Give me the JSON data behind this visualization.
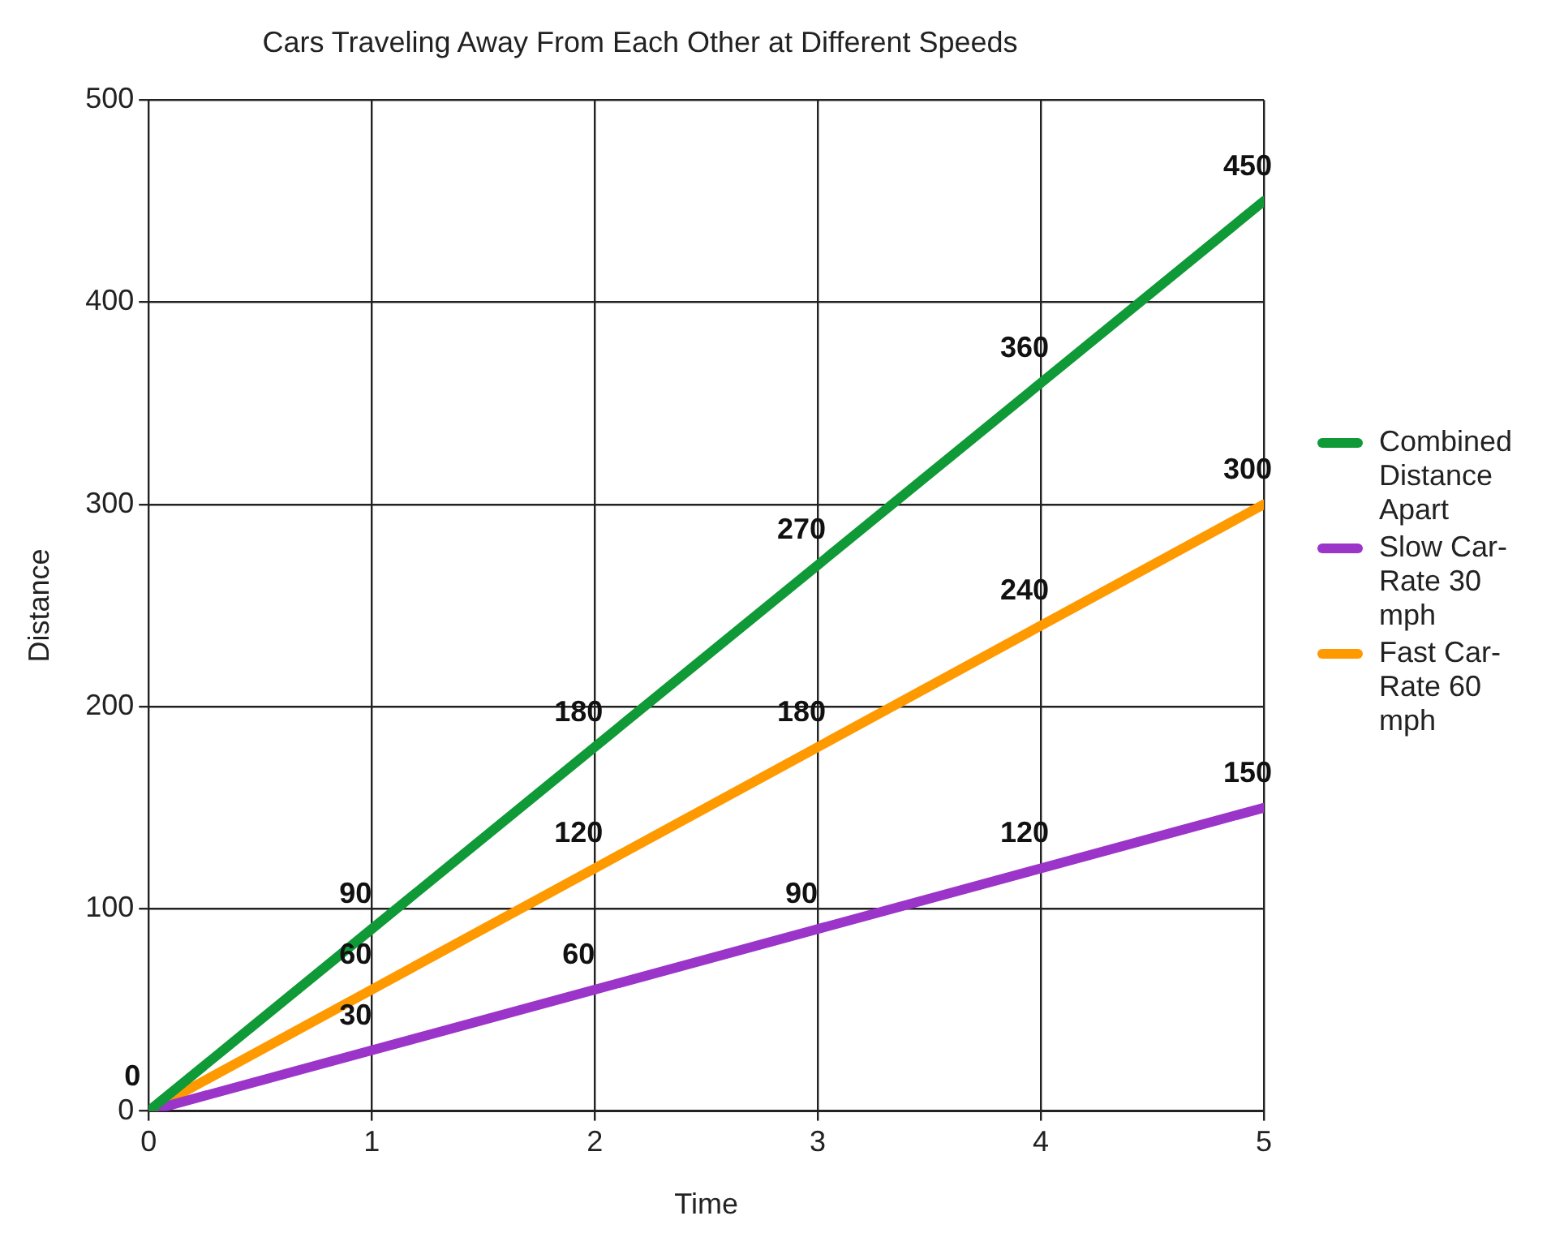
{
  "chart_data": {
    "type": "line",
    "title": "Cars Traveling Away From Each Other at Different Speeds",
    "xlabel": "Time",
    "ylabel": "Distance",
    "x": [
      0,
      1,
      2,
      3,
      4,
      5
    ],
    "xlim": [
      0,
      5
    ],
    "xticks": [
      0,
      1,
      2,
      3,
      4,
      5
    ],
    "ylim": [
      0,
      500
    ],
    "yticks": [
      0,
      100,
      200,
      300,
      400,
      500
    ],
    "series": [
      {
        "name": "Combined Distance Apart",
        "color": "#109a37",
        "values": [
          0,
          90,
          180,
          270,
          360,
          450
        ],
        "value_labels": [
          "0",
          "90",
          "180",
          "270",
          "360",
          "450"
        ]
      },
      {
        "name": "Slow Car-Rate 30 mph",
        "color": "#9b35c9",
        "values": [
          0,
          30,
          60,
          90,
          120,
          150
        ],
        "value_labels": [
          null,
          "30",
          "60",
          "90",
          "120",
          "150"
        ]
      },
      {
        "name": "Fast Car-Rate 60 mph",
        "color": "#ff9900",
        "values": [
          0,
          60,
          120,
          180,
          240,
          300
        ],
        "value_labels": [
          null,
          "60",
          "120",
          "180",
          "240",
          "300"
        ]
      }
    ],
    "grid": true,
    "legend": "right",
    "marker": "none",
    "line_style": "solid"
  }
}
